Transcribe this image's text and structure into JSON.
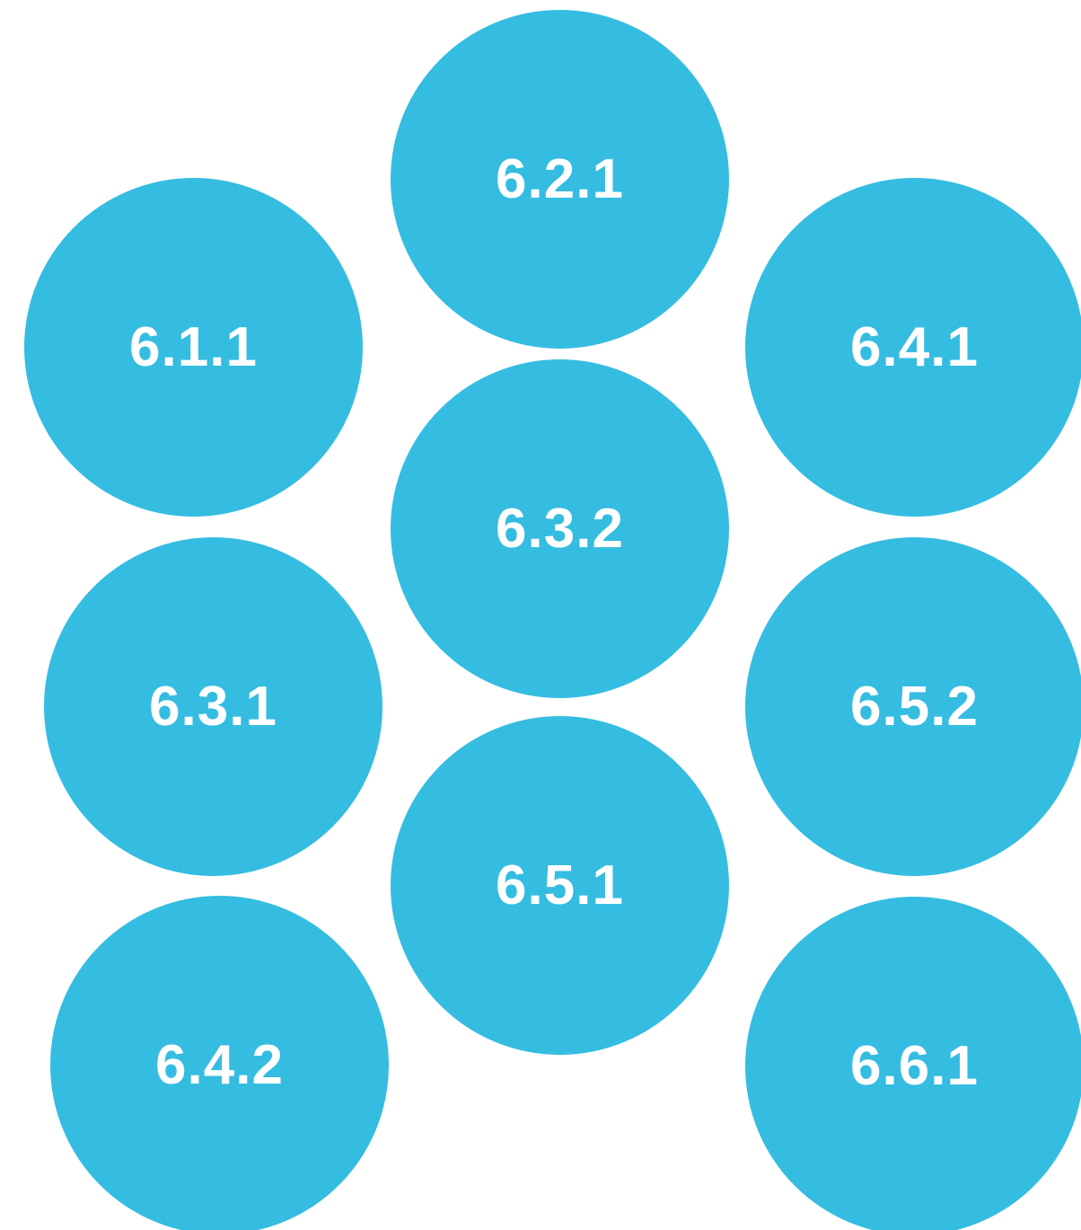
{
  "diagram": {
    "circle_color": "#35BCE1",
    "label_color": "#FFFFFF",
    "nodes": [
      {
        "label": "6.1.1"
      },
      {
        "label": "6.2.1"
      },
      {
        "label": "6.4.1"
      },
      {
        "label": "6.3.2"
      },
      {
        "label": "6.3.1"
      },
      {
        "label": "6.5.2"
      },
      {
        "label": "6.5.1"
      },
      {
        "label": "6.4.2"
      },
      {
        "label": "6.6.1"
      }
    ]
  }
}
